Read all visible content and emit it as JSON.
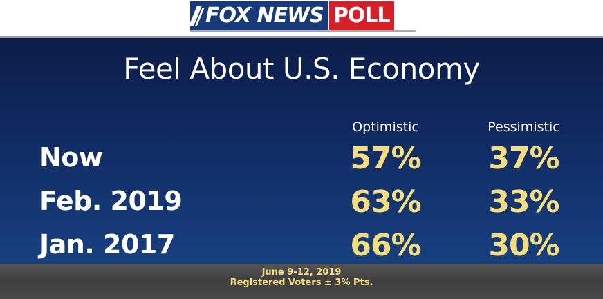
{
  "header": {
    "logo_fox": "FOX NEWS",
    "logo_poll": "POLL",
    "brand_colors": {
      "navy": "#173a7a",
      "red": "#d71f2a"
    }
  },
  "chart_data": {
    "type": "table",
    "title": "Feel About U.S. Economy",
    "columns": [
      "Optimistic",
      "Pessimistic"
    ],
    "rows": [
      {
        "label": "Now",
        "values": [
          "57%",
          "37%"
        ]
      },
      {
        "label": "Feb. 2019",
        "values": [
          "63%",
          "33%"
        ]
      },
      {
        "label": "Jan. 2017",
        "values": [
          "66%",
          "30%"
        ]
      }
    ],
    "colors": {
      "label": "#ffffff",
      "value": "#f5dd7d"
    }
  },
  "footer": {
    "date": "June 9-12, 2019",
    "sample": "Registered Voters ± 3% Pts."
  }
}
